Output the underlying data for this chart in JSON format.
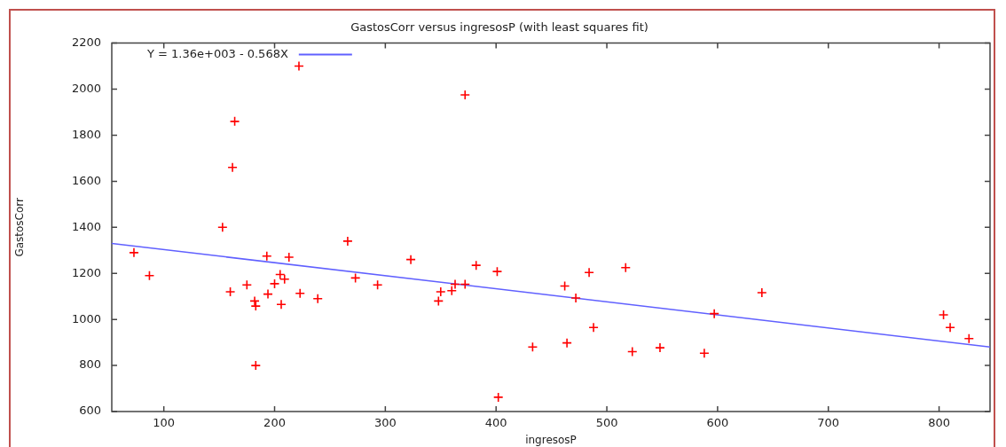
{
  "chart_data": {
    "type": "scatter",
    "title": "GastosCorr versus ingresosP (with least squares fit)",
    "xlabel": "ingresosP",
    "ylabel": "GastosCorr",
    "xlim": [
      53,
      846
    ],
    "xticks": [
      100,
      200,
      300,
      400,
      500,
      600,
      700,
      800
    ],
    "ylim": [
      600,
      2200
    ],
    "yticks": [
      600,
      800,
      1000,
      1200,
      1400,
      1600,
      1800,
      2000,
      2200
    ],
    "legend": "top left",
    "marker": "cross",
    "series": [
      {
        "color": "#ff0000",
        "x": [
          73,
          87,
          153,
          160,
          162,
          164,
          175,
          182,
          183,
          183,
          193,
          194,
          200,
          205,
          206,
          209,
          213,
          222,
          223,
          239,
          266,
          273,
          293,
          323,
          348,
          350,
          360,
          363,
          372,
          372,
          382,
          401,
          402,
          433,
          462,
          464,
          472,
          484,
          488,
          517,
          523,
          548,
          588,
          597,
          640,
          804,
          810,
          827
        ],
        "values": [
          1290,
          1190,
          1400,
          1120,
          1660,
          1860,
          1150,
          1080,
          1058,
          800,
          1275,
          1110,
          1155,
          1195,
          1065,
          1175,
          1270,
          2100,
          1113,
          1090,
          1340,
          1180,
          1150,
          1260,
          1080,
          1120,
          1125,
          1153,
          1153,
          1975,
          1235,
          1208,
          662,
          880,
          1145,
          898,
          1093,
          1204,
          965,
          1225,
          860,
          877,
          853,
          1025,
          1116,
          1020,
          965,
          917
        ]
      },
      {
        "type": "line",
        "name": "Y = 1.36e+003 - 0.568X",
        "color": "#6060ff",
        "marker": "none",
        "x": [
          53,
          846
        ],
        "values": [
          1330,
          880
        ]
      }
    ]
  }
}
